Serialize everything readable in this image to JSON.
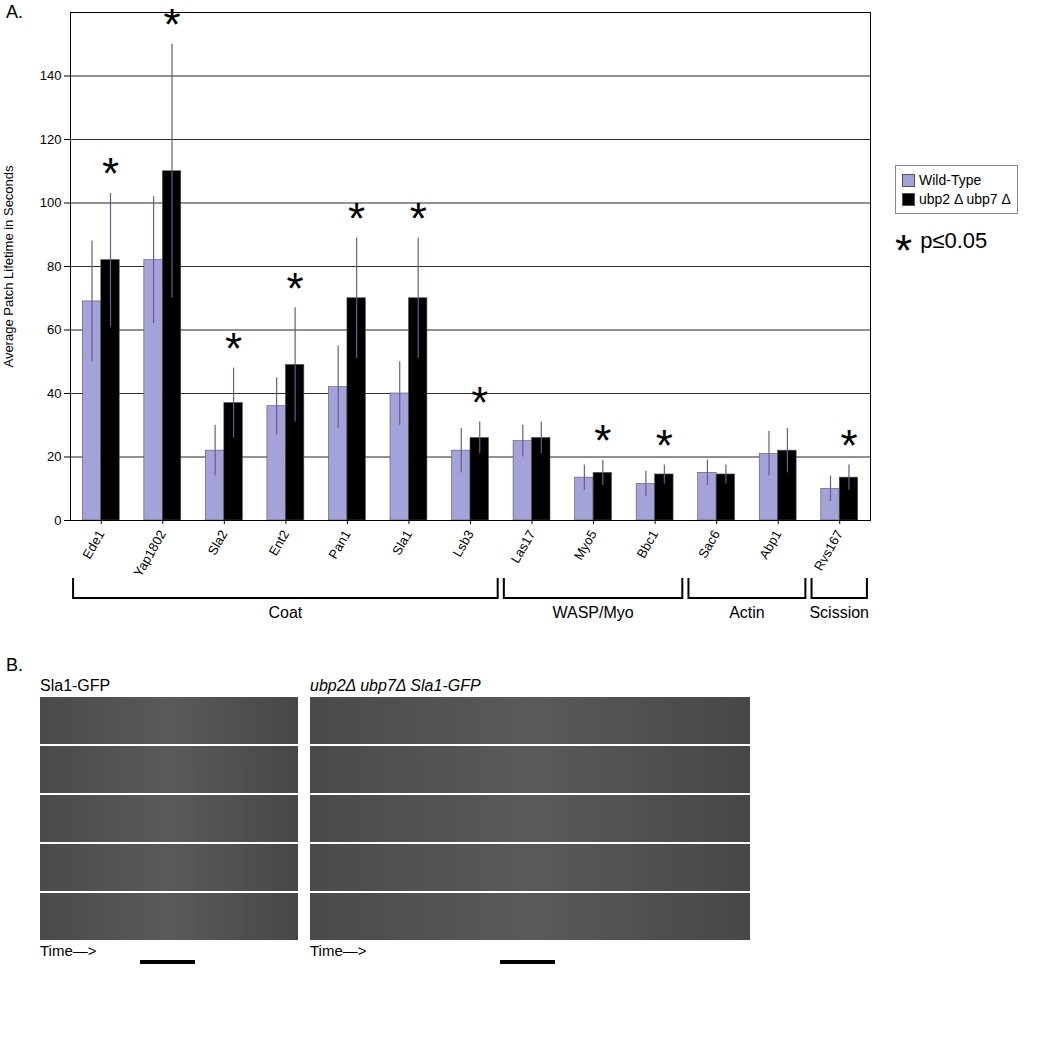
{
  "chart_data": {
    "type": "bar",
    "panel_label": "A.",
    "y_label": "Average Patch Lifetime in Seconds",
    "categories": [
      "Ede1",
      "Yap1802",
      "Sla2",
      "Ent2",
      "Pan1",
      "Sla1",
      "Lsb3",
      "Las17",
      "Myo5",
      "Bbc1",
      "Sac6",
      "Abp1",
      "Rvs167"
    ],
    "series": [
      {
        "name": "Wild-Type",
        "color": "#a3a3d9",
        "values": [
          69,
          82,
          22,
          36,
          42,
          40,
          22,
          25,
          13.5,
          11.5,
          15,
          21,
          10
        ],
        "errors": [
          19,
          20,
          8,
          9,
          13,
          10,
          7,
          5,
          4,
          4,
          4,
          7,
          4
        ]
      },
      {
        "name": "ubp2 Δ ubp7 Δ",
        "color": "#000000",
        "values": [
          82,
          110,
          37,
          49,
          70,
          70,
          26,
          26,
          15,
          14.5,
          14.5,
          22,
          13.5
        ],
        "errors": [
          21,
          40,
          11,
          18,
          19,
          19,
          5,
          5,
          4,
          3,
          3,
          7,
          4
        ],
        "significant": [
          true,
          true,
          true,
          true,
          true,
          true,
          true,
          false,
          true,
          true,
          false,
          false,
          true
        ]
      }
    ],
    "ylim": [
      0,
      160
    ],
    "yticks": [
      0,
      20,
      40,
      60,
      80,
      100,
      120,
      140
    ],
    "grid": true,
    "legend": "right",
    "annotation": {
      "symbol": "*",
      "label": "p≤0.05"
    },
    "groups": [
      {
        "label": "Coat",
        "categories": [
          "Ede1",
          "Yap1802",
          "Sla2",
          "Ent2",
          "Pan1",
          "Sla1",
          "Lsb3"
        ]
      },
      {
        "label": "WASP/Myo",
        "categories": [
          "Las17",
          "Myo5",
          "Bbc1"
        ]
      },
      {
        "label": "Actin",
        "categories": [
          "Sac6",
          "Abp1"
        ]
      },
      {
        "label": "Scission",
        "categories": [
          "Rvs167"
        ]
      }
    ]
  },
  "panel_b": {
    "label": "B.",
    "panels": [
      {
        "title": "Sla1-GFP",
        "time_label": "Time—>",
        "count": 5
      },
      {
        "title": "ubp2Δ ubp7Δ Sla1-GFP",
        "time_label": "Time—>",
        "count": 5
      }
    ]
  }
}
